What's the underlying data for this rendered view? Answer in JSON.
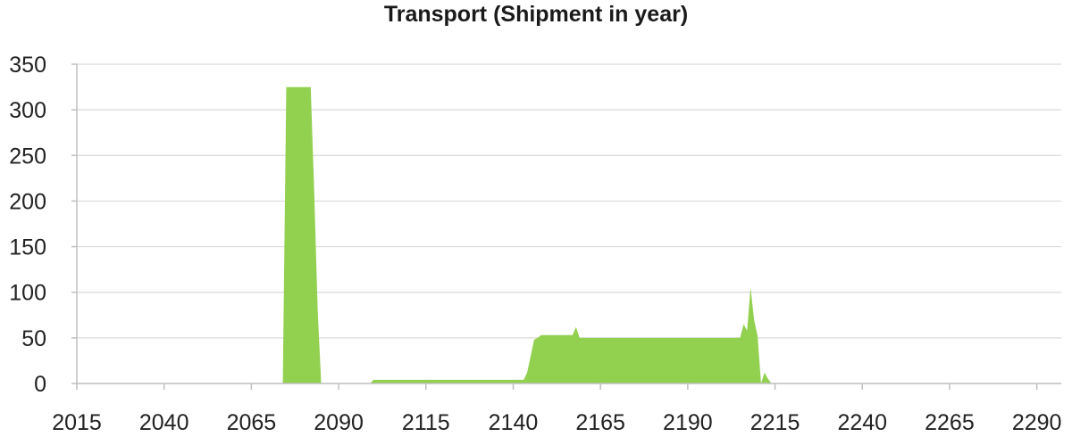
{
  "chart_data": {
    "type": "area",
    "title": "Transport (Shipment in year)",
    "xlabel": "",
    "ylabel": "",
    "xlim": [
      2015,
      2297
    ],
    "ylim": [
      0,
      350
    ],
    "x_ticks": [
      2015,
      2040,
      2065,
      2090,
      2115,
      2140,
      2165,
      2190,
      2215,
      2240,
      2265,
      2290
    ],
    "y_ticks": [
      0,
      50,
      100,
      150,
      200,
      250,
      300,
      350
    ],
    "grid": "horizontal",
    "legend": "none",
    "series": [
      {
        "color": "#92d050",
        "x": [
          2074,
          2075,
          2082,
          2083,
          2084,
          2085,
          2099,
          2100,
          2143,
          2144,
          2145,
          2146,
          2147,
          2148,
          2149,
          2150,
          2157,
          2158,
          2159,
          2160,
          2205,
          2206,
          2207,
          2208,
          2209,
          2210,
          2211,
          2212,
          2213,
          2214
        ],
        "y": [
          0,
          325,
          325,
          210,
          80,
          0,
          0,
          4,
          4,
          12,
          30,
          48,
          50,
          53,
          53,
          53,
          53,
          62,
          50,
          50,
          50,
          65,
          58,
          105,
          70,
          52,
          0,
          12,
          5,
          0
        ]
      }
    ]
  }
}
